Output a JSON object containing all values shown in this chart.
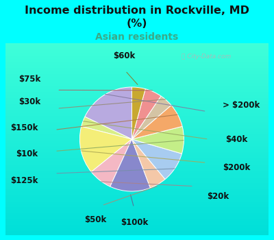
{
  "title_line1": "Income distribution in Rockville, MD",
  "title_line2": "(%)",
  "subtitle": "Asian residents",
  "title_color": "#111111",
  "subtitle_color": "#3aaa88",
  "bg_outer": "#00ffff",
  "bg_chart_top": "#e8f8f0",
  "bg_chart_bottom": "#c8e8d8",
  "watermark": "ⓘ City-Data.com",
  "labels": [
    "> $200k",
    "$40k",
    "$200k",
    "$20k",
    "$100k",
    "$50k",
    "$125k",
    "$10k",
    "$150k",
    "$30k",
    "$75k",
    "$60k"
  ],
  "values": [
    17,
    3,
    14,
    7,
    12,
    5,
    9,
    8,
    7,
    4,
    5,
    4
  ],
  "colors": [
    "#b8aae0",
    "#d8ee88",
    "#f4ee78",
    "#f4b8c4",
    "#8888cc",
    "#f4c8a8",
    "#a8ccf0",
    "#c4ee88",
    "#f4a868",
    "#d4c4a4",
    "#f09090",
    "#c8a830"
  ],
  "startangle": 90,
  "label_fs": 8.5,
  "label_color": "#111111"
}
